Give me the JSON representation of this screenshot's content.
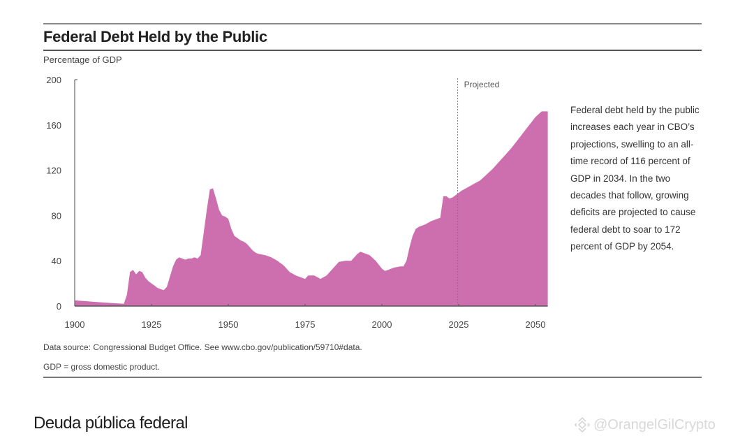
{
  "chart_data": {
    "type": "area",
    "title": "Federal Debt Held by the Public",
    "ylabel": "Percentage of GDP",
    "xlabel": "",
    "xlim": [
      1900,
      2054
    ],
    "ylim": [
      0,
      200
    ],
    "x_ticks": [
      1900,
      1925,
      1950,
      1975,
      2000,
      2025,
      2050
    ],
    "y_ticks": [
      0,
      40,
      80,
      120,
      160,
      200
    ],
    "grid": false,
    "fill_color": "#cd6fae",
    "projection_start": 2024,
    "projection_label": "Projected",
    "series": [
      {
        "name": "Federal debt held by the public (% of GDP)",
        "x": [
          1900,
          1905,
          1910,
          1916,
          1917,
          1918,
          1919,
          1920,
          1921,
          1922,
          1923,
          1924,
          1925,
          1926,
          1927,
          1928,
          1929,
          1930,
          1931,
          1932,
          1933,
          1934,
          1935,
          1936,
          1937,
          1938,
          1939,
          1940,
          1941,
          1942,
          1943,
          1944,
          1945,
          1946,
          1947,
          1948,
          1949,
          1950,
          1951,
          1952,
          1953,
          1954,
          1955,
          1956,
          1957,
          1958,
          1959,
          1960,
          1962,
          1964,
          1966,
          1968,
          1970,
          1972,
          1974,
          1975,
          1976,
          1978,
          1980,
          1982,
          1984,
          1986,
          1988,
          1990,
          1992,
          1993,
          1994,
          1996,
          1998,
          2000,
          2001,
          2002,
          2004,
          2006,
          2007,
          2008,
          2009,
          2010,
          2011,
          2012,
          2014,
          2016,
          2018,
          2019,
          2020,
          2021,
          2022,
          2023,
          2024,
          2026,
          2028,
          2030,
          2032,
          2034,
          2036,
          2038,
          2040,
          2042,
          2044,
          2046,
          2048,
          2050,
          2052,
          2054
        ],
        "values": [
          5,
          4,
          3,
          2,
          10,
          30,
          32,
          28,
          31,
          30,
          25,
          22,
          20,
          18,
          16,
          15,
          14,
          17,
          26,
          35,
          41,
          43,
          42,
          41,
          42,
          42,
          43,
          42,
          45,
          65,
          85,
          103,
          104,
          95,
          85,
          80,
          79,
          77,
          68,
          62,
          60,
          58,
          57,
          55,
          52,
          49,
          47,
          46,
          45,
          43,
          40,
          36,
          30,
          27,
          25,
          24,
          27,
          27,
          24,
          27,
          33,
          39,
          40,
          40,
          46,
          48,
          47,
          45,
          40,
          33,
          31,
          32,
          34,
          35,
          35,
          40,
          52,
          62,
          68,
          70,
          72,
          75,
          77,
          78,
          97,
          97,
          95,
          96,
          98,
          102,
          105,
          108,
          111,
          116,
          121,
          127,
          133,
          139,
          146,
          153,
          160,
          167,
          172,
          172
        ]
      }
    ],
    "annotation": "Federal debt held by the public increases each year in CBO’s projections, swelling to an all-time record of 116 percent of GDP in 2034. In the two decades that follow, growing deficits are projected to cause federal debt to soar to 172 percent of GDP by 2054.",
    "source": "Data source: Congressional Budget Office. See www.cbo.gov/publication/59710#data.",
    "note": "GDP = gross domestic product."
  },
  "caption": "Deuda pública federal",
  "watermark": {
    "icon": "binance-logo-icon",
    "text": "@OrangelGilCrypto"
  }
}
